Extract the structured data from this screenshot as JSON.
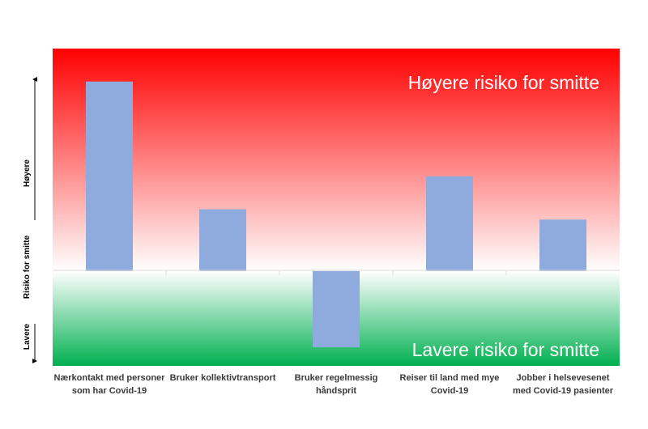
{
  "chart_data": {
    "type": "bar",
    "title": "",
    "categories": [
      "Nærkontakt med personer som har Covid-19",
      "Bruker kollektivtransport",
      "Bruker regelmessig håndsprit",
      "Reiser til land med mye Covid-19",
      "Jobber i helsevesenet med Covid-19 pasienter"
    ],
    "values": [
      4.6,
      1.5,
      -1.85,
      2.3,
      1.25
    ],
    "ylim": [
      -2.3,
      5.4
    ],
    "grid": false,
    "legend": "none",
    "ylabel": "Risiko for smitte",
    "ylabel_upper": "Høyere",
    "ylabel_lower": "Lavere",
    "band_high_label": "Høyere risiko for smitte",
    "band_low_label": "Lavere risiko for smitte"
  },
  "colors": {
    "bar": "#8faadc",
    "high_band": "#ff0000",
    "low_band": "#00b050",
    "band_text": "#ffffff"
  }
}
